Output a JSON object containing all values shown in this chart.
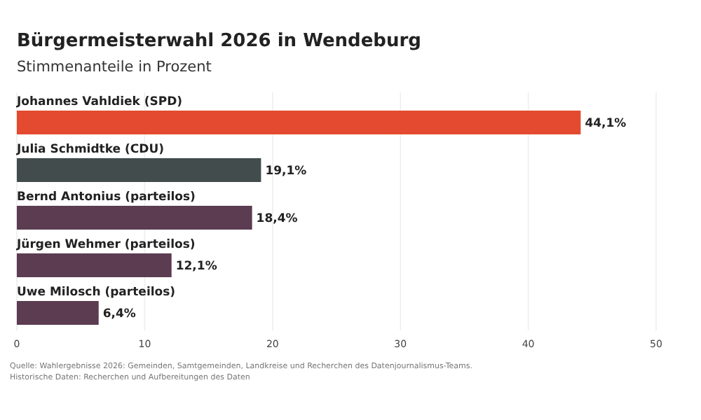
{
  "chart_data": {
    "type": "bar",
    "orientation": "horizontal",
    "title": "Bürgermeisterwahl 2026 in Wendeburg",
    "subtitle": "Stimmenanteile in Prozent",
    "categories": [
      "Johannes Vahldiek (SPD)",
      "Julia Schmidtke (CDU)",
      "Bernd Antonius (parteilos)",
      "Jürgen Wehmer (parteilos)",
      "Uwe Milosch (parteilos)"
    ],
    "values": [
      44.1,
      19.1,
      18.4,
      12.1,
      6.4
    ],
    "colors": [
      "#e34a2f",
      "#434c4c",
      "#5b3c50",
      "#5b3c50",
      "#5b3c50"
    ],
    "value_labels": [
      "44,1%",
      "19,1%",
      "18,4%",
      "12,1%",
      "6,4%"
    ],
    "xlim": [
      0,
      50
    ],
    "xticks": [
      0,
      10,
      20,
      30,
      40,
      50
    ],
    "grid": "x",
    "annotations": [
      "Quelle: Wahlergebnisse 2026: Gemeinden, Samtgemeinden, Landkreise und Recherchen des Datenjournalismus-Teams. Historische Daten: Recherchen und Aufbereitungen des Daten"
    ]
  }
}
